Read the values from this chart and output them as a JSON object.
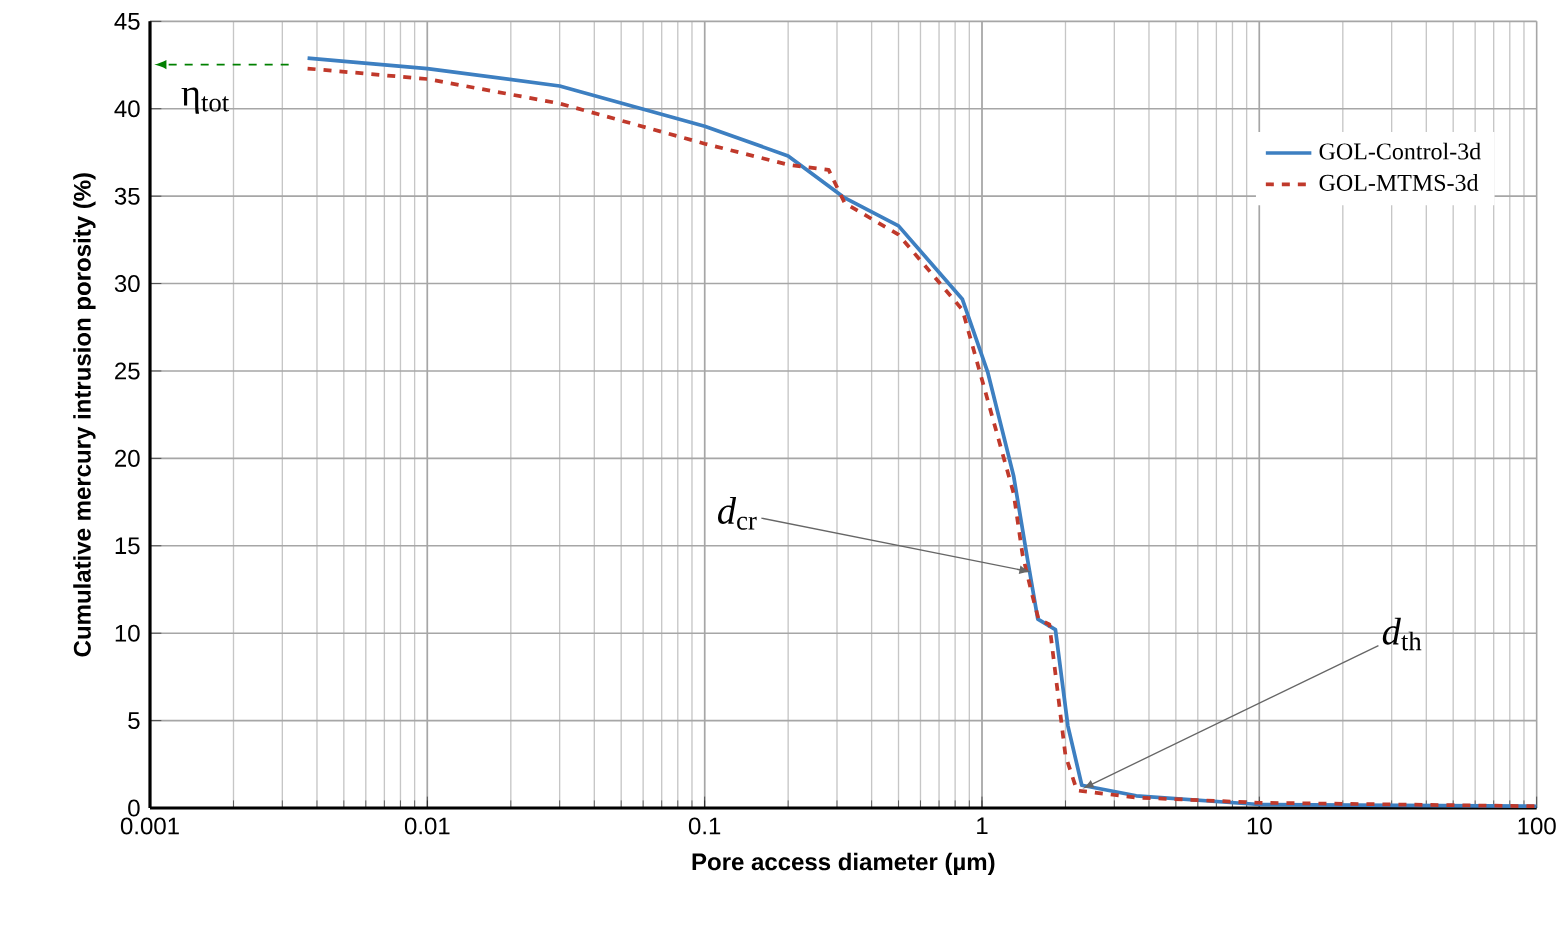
{
  "chart_data": {
    "type": "line",
    "xlabel": "Pore access diameter (µm)",
    "ylabel": "Cumulative mercury intrusion porosity (%)",
    "log": "x",
    "xlim": [
      0.001,
      100
    ],
    "xticks": [
      0.001,
      0.01,
      0.1,
      1,
      10,
      100
    ],
    "ylim": [
      0,
      45
    ],
    "yticks": [
      0,
      5,
      10,
      15,
      20,
      25,
      30,
      35,
      40,
      45
    ],
    "grid": true,
    "legend": "top right",
    "series": [
      {
        "name": "GOL-Control-3d",
        "color": "#3d7fc1",
        "line_style": "solid",
        "x": [
          0.0037,
          0.01,
          0.03,
          0.1,
          0.2,
          0.32,
          0.5,
          0.85,
          1.05,
          1.3,
          1.46,
          1.59,
          1.84,
          2.04,
          2.29,
          3.6,
          10,
          100
        ],
        "values": [
          42.9,
          42.3,
          41.3,
          39.0,
          37.3,
          34.9,
          33.3,
          29.1,
          24.9,
          19.0,
          14.2,
          10.8,
          10.2,
          4.7,
          1.3,
          0.7,
          0.2,
          0.1
        ]
      },
      {
        "name": "GOL-MTMS-3d",
        "color": "#c0392b",
        "line_style": "dashed",
        "x": [
          0.0037,
          0.01,
          0.03,
          0.1,
          0.2,
          0.28,
          0.32,
          0.5,
          0.85,
          1.0,
          1.3,
          1.4,
          1.5,
          1.6,
          1.75,
          2.0,
          2.2,
          3.6,
          10,
          100
        ],
        "values": [
          42.3,
          41.7,
          40.3,
          38.0,
          36.8,
          36.5,
          34.6,
          32.8,
          28.5,
          24.5,
          18.0,
          14.5,
          12.5,
          10.8,
          10.5,
          3.0,
          1.0,
          0.6,
          0.3,
          0.1
        ]
      }
    ],
    "annotations": [
      "η$_{tot}$",
      {
        "text": "*d*$_{cr}$",
        "x": 1.5,
        "y": 13.5
      },
      {
        "text": "*d*$_{th}$",
        "x": 2.3,
        "y": 1.1
      }
    ]
  }
}
